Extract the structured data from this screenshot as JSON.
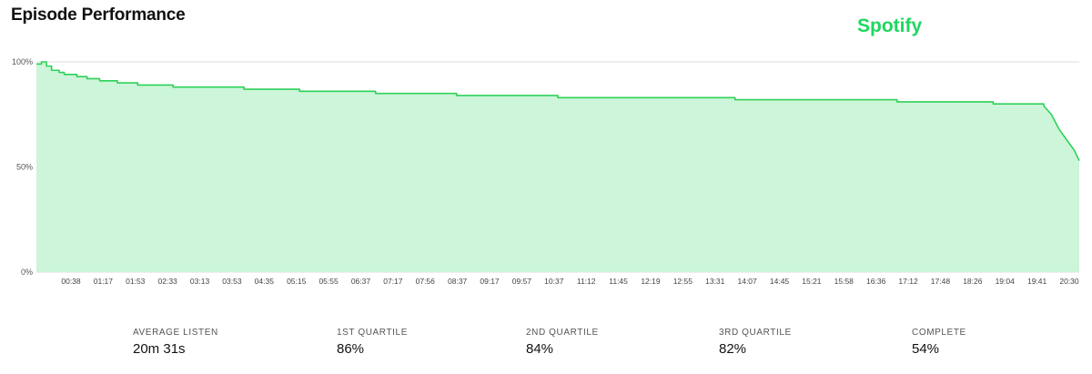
{
  "header": {
    "title": "Episode Performance",
    "brand": "Spotify"
  },
  "colors": {
    "line": "#2ed158",
    "fill": "#ccf5d9",
    "grid": "#dddddd",
    "brand": "#1ed760"
  },
  "chart_data": {
    "type": "area",
    "title": "Episode Performance",
    "xlabel": "",
    "ylabel": "",
    "ylim": [
      0,
      100
    ],
    "y_ticks": [
      "0%",
      "50%",
      "100%"
    ],
    "x_ticks": [
      "00:38",
      "01:17",
      "01:53",
      "02:33",
      "03:13",
      "03:53",
      "04:35",
      "05:15",
      "05:55",
      "06:37",
      "07:17",
      "07:56",
      "08:37",
      "09:17",
      "09:57",
      "10:37",
      "11:12",
      "11:45",
      "12:19",
      "12:55",
      "13:31",
      "14:07",
      "14:45",
      "15:21",
      "15:58",
      "16:36",
      "17:12",
      "17:48",
      "18:26",
      "19:04",
      "19:41",
      "20:30"
    ],
    "x_unit": "minutes",
    "x_range": [
      0,
      20.6
    ],
    "grid": true,
    "series": [
      {
        "values": [
          [
            0,
            99
          ],
          [
            0.1,
            100
          ],
          [
            0.2,
            98
          ],
          [
            0.3,
            96
          ],
          [
            0.45,
            95
          ],
          [
            0.55,
            94
          ],
          [
            0.8,
            93
          ],
          [
            1.0,
            92
          ],
          [
            1.25,
            91
          ],
          [
            1.6,
            90
          ],
          [
            2.0,
            89
          ],
          [
            2.7,
            88
          ],
          [
            4.1,
            87
          ],
          [
            5.2,
            86
          ],
          [
            6.7,
            85
          ],
          [
            8.3,
            84
          ],
          [
            10.3,
            83
          ],
          [
            13.8,
            82
          ],
          [
            17.0,
            81
          ],
          [
            18.9,
            80
          ],
          [
            19.9,
            79
          ],
          [
            20.05,
            75
          ],
          [
            20.2,
            68
          ],
          [
            20.35,
            63
          ],
          [
            20.5,
            58
          ],
          [
            20.6,
            53
          ]
        ]
      }
    ]
  },
  "stats": [
    {
      "label": "AVERAGE LISTEN",
      "value": "20m 31s"
    },
    {
      "label": "1ST QUARTILE",
      "value": "86%"
    },
    {
      "label": "2ND QUARTILE",
      "value": "84%"
    },
    {
      "label": "3RD QUARTILE",
      "value": "82%"
    },
    {
      "label": "COMPLETE",
      "value": "54%"
    }
  ]
}
